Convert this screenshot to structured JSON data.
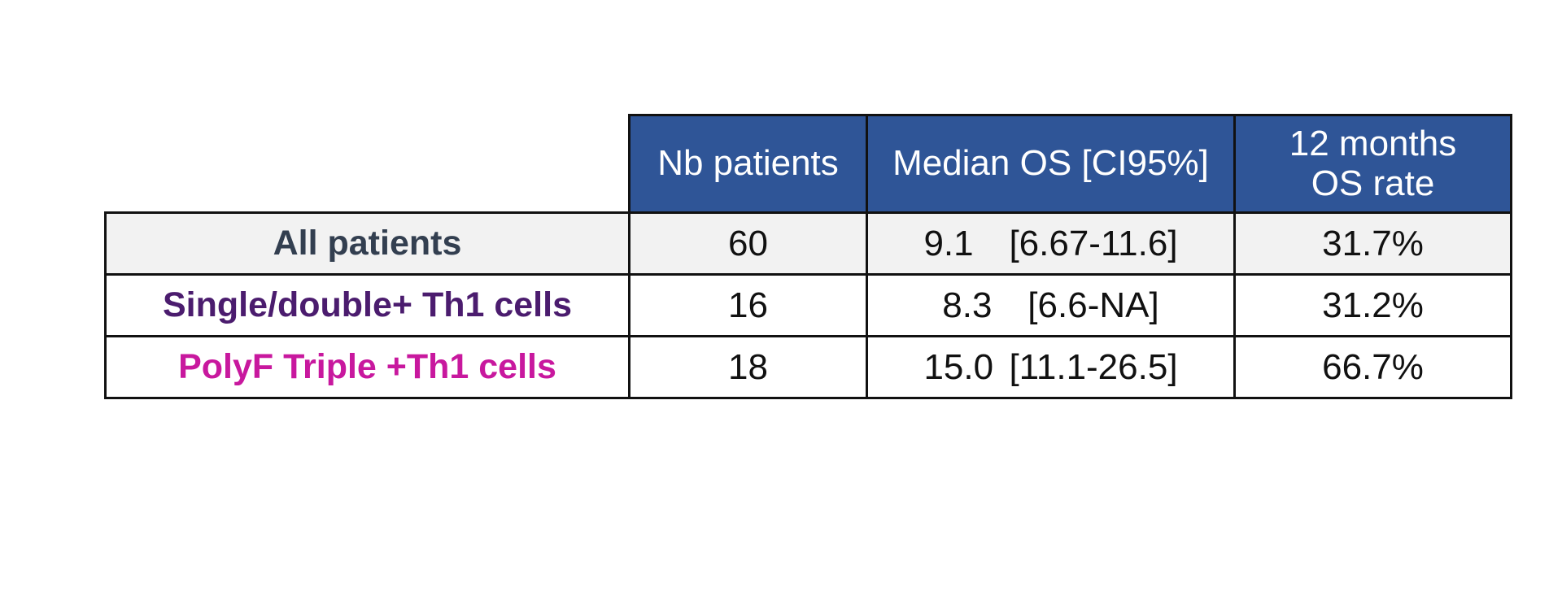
{
  "table": {
    "headers": {
      "nb_patients": "Nb patients",
      "median_os": "Median OS [CI95%]",
      "rate_line1": "12 months",
      "rate_line2": "OS rate"
    },
    "rows": [
      {
        "label": "All patients",
        "label_color": "#333f50",
        "nb": "60",
        "median": "9.1",
        "ci": "[6.67-11.6]",
        "rate": "31.7%"
      },
      {
        "label": "Single/double+ Th1 cells",
        "label_color": "#4b1c6e",
        "nb": "16",
        "median": "8.3",
        "ci": "[6.6-NA]",
        "rate": "31.2%"
      },
      {
        "label": "PolyF Triple +Th1 cells",
        "label_color": "#c8189e",
        "nb": "18",
        "median": "15.0",
        "ci": "[11.1-26.5]",
        "rate": "66.7%"
      }
    ],
    "colors": {
      "header_bg": "#2f5597",
      "header_text": "#ffffff",
      "first_row_bg": "#f2f2f2",
      "border": "#111111"
    }
  }
}
